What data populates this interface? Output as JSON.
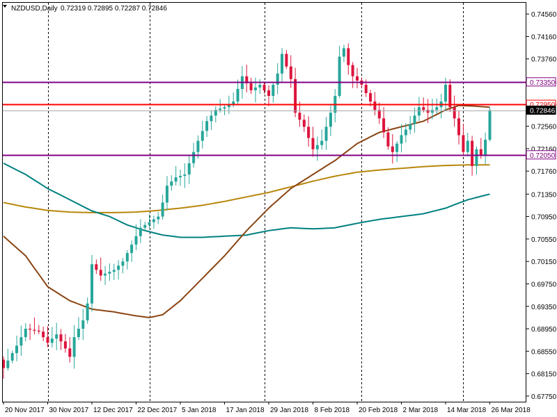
{
  "header": {
    "menu_icon": "triangle-down-icon",
    "symbol": "NZDUSD,Daily",
    "ohlc": "0.72319 0.72895 0.72287 0.72846"
  },
  "colors": {
    "background": "#ffffff",
    "bull_candle": "#26a69a",
    "bear_candle": "#dc143c",
    "ma_fast": "#8b4513",
    "ma_mid": "#008080",
    "ma_slow": "#b8860b",
    "level_purple": "#800080",
    "level_red": "#ff0000",
    "current_price_line": "#a9a9a9",
    "separator": "#000000"
  },
  "chart_data": {
    "type": "candlestick",
    "ylim": [
      0.6765,
      0.7476
    ],
    "y_ticks": [
      "0.74560",
      "0.74160",
      "0.73760",
      "0.73350",
      "0.72950",
      "0.72560",
      "0.72160",
      "0.71760",
      "0.71350",
      "0.70950",
      "0.70550",
      "0.70150",
      "0.69750",
      "0.69350",
      "0.68950",
      "0.68550",
      "0.68150",
      "0.67750"
    ],
    "x_tick_labels": [
      "20 Nov 2017",
      "30 Nov 2017",
      "12 Dec 2017",
      "22 Dec 2017",
      "5 Jan 2018",
      "17 Jan 2018",
      "29 Jan 2018",
      "8 Feb 2018",
      "20 Feb 2018",
      "2 Mar 2018",
      "14 Mar 2018",
      "26 Mar 2018"
    ],
    "x_tick_candle_index": [
      0,
      10,
      20,
      30,
      40,
      50,
      60,
      70,
      80,
      90,
      100,
      110
    ],
    "separator_candle_index": [
      10,
      33,
      59,
      81,
      104
    ],
    "price_labels": [
      {
        "value": 0.7335,
        "text": "0.73350",
        "color": "#800080",
        "kind": "line"
      },
      {
        "value": 0.7295,
        "text": "0.72950",
        "color": "#ff0000",
        "kind": "line"
      },
      {
        "value": 0.72846,
        "text": "0.72846",
        "color": "#000000",
        "kind": "current"
      },
      {
        "value": 0.7205,
        "text": "0.72050",
        "color": "#800080",
        "kind": "line"
      }
    ],
    "close_keypoints": [
      [
        0,
        0.6825
      ],
      [
        3,
        0.6865
      ],
      [
        5,
        0.6895
      ],
      [
        8,
        0.689
      ],
      [
        10,
        0.687
      ],
      [
        12,
        0.6885
      ],
      [
        14,
        0.686
      ],
      [
        15,
        0.6845
      ],
      [
        16,
        0.688
      ],
      [
        18,
        0.691
      ],
      [
        19,
        0.694
      ],
      [
        20,
        0.701
      ],
      [
        22,
        0.699
      ],
      [
        25,
        0.7
      ],
      [
        27,
        0.7015
      ],
      [
        29,
        0.7045
      ],
      [
        31,
        0.7075
      ],
      [
        33,
        0.7085
      ],
      [
        35,
        0.7095
      ],
      [
        36,
        0.712
      ],
      [
        37,
        0.715
      ],
      [
        39,
        0.7165
      ],
      [
        41,
        0.717
      ],
      [
        42,
        0.719
      ],
      [
        44,
        0.723
      ],
      [
        46,
        0.7265
      ],
      [
        48,
        0.7285
      ],
      [
        50,
        0.729
      ],
      [
        52,
        0.73
      ],
      [
        54,
        0.7345
      ],
      [
        56,
        0.732
      ],
      [
        58,
        0.733
      ],
      [
        60,
        0.731
      ],
      [
        62,
        0.735
      ],
      [
        63,
        0.7385
      ],
      [
        65,
        0.734
      ],
      [
        66,
        0.728
      ],
      [
        68,
        0.7255
      ],
      [
        70,
        0.7215
      ],
      [
        72,
        0.723
      ],
      [
        73,
        0.7255
      ],
      [
        74,
        0.728
      ],
      [
        75,
        0.731
      ],
      [
        76,
        0.738
      ],
      [
        77,
        0.7395
      ],
      [
        78,
        0.7365
      ],
      [
        79,
        0.7345
      ],
      [
        81,
        0.733
      ],
      [
        83,
        0.73
      ],
      [
        85,
        0.727
      ],
      [
        87,
        0.722
      ],
      [
        88,
        0.721
      ],
      [
        90,
        0.724
      ],
      [
        92,
        0.726
      ],
      [
        94,
        0.729
      ],
      [
        96,
        0.728
      ],
      [
        98,
        0.729
      ],
      [
        99,
        0.73
      ],
      [
        100,
        0.733
      ],
      [
        101,
        0.729
      ],
      [
        102,
        0.727
      ],
      [
        103,
        0.724
      ],
      [
        104,
        0.721
      ],
      [
        105,
        0.723
      ],
      [
        106,
        0.7185
      ],
      [
        107,
        0.7215
      ],
      [
        108,
        0.7205
      ],
      [
        109,
        0.7232
      ],
      [
        110,
        0.72846
      ]
    ],
    "ma_fast_keypoints": [
      [
        0,
        0.706
      ],
      [
        5,
        0.7025
      ],
      [
        10,
        0.697
      ],
      [
        15,
        0.6945
      ],
      [
        20,
        0.693
      ],
      [
        25,
        0.6925
      ],
      [
        30,
        0.6918
      ],
      [
        33,
        0.6915
      ],
      [
        36,
        0.692
      ],
      [
        40,
        0.6945
      ],
      [
        45,
        0.6985
      ],
      [
        50,
        0.7025
      ],
      [
        55,
        0.707
      ],
      [
        60,
        0.711
      ],
      [
        65,
        0.7145
      ],
      [
        70,
        0.717
      ],
      [
        75,
        0.7195
      ],
      [
        80,
        0.7225
      ],
      [
        85,
        0.7245
      ],
      [
        90,
        0.7255
      ],
      [
        95,
        0.7265
      ],
      [
        100,
        0.7285
      ],
      [
        103,
        0.7293
      ],
      [
        106,
        0.7292
      ],
      [
        110,
        0.729
      ]
    ],
    "ma_mid_keypoints": [
      [
        0,
        0.719
      ],
      [
        5,
        0.717
      ],
      [
        10,
        0.7145
      ],
      [
        15,
        0.7125
      ],
      [
        20,
        0.7105
      ],
      [
        24,
        0.7095
      ],
      [
        28,
        0.708
      ],
      [
        32,
        0.707
      ],
      [
        36,
        0.7062
      ],
      [
        40,
        0.7058
      ],
      [
        45,
        0.7058
      ],
      [
        50,
        0.706
      ],
      [
        55,
        0.7062
      ],
      [
        60,
        0.707
      ],
      [
        65,
        0.7075
      ],
      [
        70,
        0.7073
      ],
      [
        75,
        0.7075
      ],
      [
        80,
        0.7083
      ],
      [
        85,
        0.709
      ],
      [
        90,
        0.7095
      ],
      [
        95,
        0.71
      ],
      [
        100,
        0.711
      ],
      [
        105,
        0.7125
      ],
      [
        110,
        0.7135
      ]
    ],
    "ma_slow_keypoints": [
      [
        0,
        0.712
      ],
      [
        5,
        0.7112
      ],
      [
        10,
        0.7106
      ],
      [
        15,
        0.7103
      ],
      [
        20,
        0.7102
      ],
      [
        25,
        0.7102
      ],
      [
        30,
        0.7103
      ],
      [
        35,
        0.7106
      ],
      [
        40,
        0.711
      ],
      [
        45,
        0.7115
      ],
      [
        50,
        0.7122
      ],
      [
        55,
        0.713
      ],
      [
        60,
        0.7138
      ],
      [
        65,
        0.7148
      ],
      [
        70,
        0.7158
      ],
      [
        75,
        0.7167
      ],
      [
        80,
        0.7174
      ],
      [
        85,
        0.7178
      ],
      [
        90,
        0.7181
      ],
      [
        95,
        0.7184
      ],
      [
        100,
        0.7186
      ],
      [
        105,
        0.7187
      ],
      [
        110,
        0.7187
      ]
    ]
  }
}
